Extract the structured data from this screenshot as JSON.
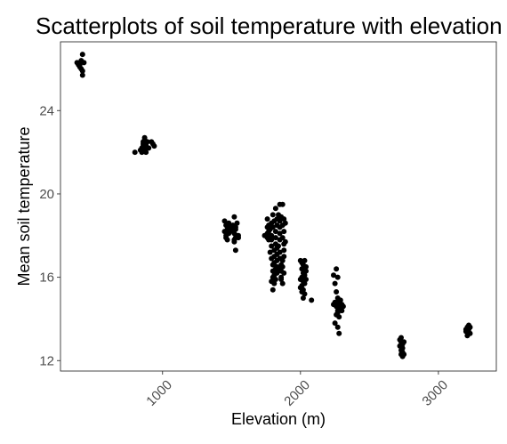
{
  "chart_data": {
    "type": "scatter",
    "title": "Scatterplots of soil temperature with elevation",
    "xlabel": "Elevation (m)",
    "ylabel": "Mean soil temperature",
    "xlim": [
      260,
      3420
    ],
    "ylim": [
      11.5,
      27.3
    ],
    "x_ticks": [
      1000,
      2000,
      3000
    ],
    "x_tick_labels": [
      "1000",
      "2000",
      "3000"
    ],
    "y_ticks": [
      12,
      16,
      20,
      24
    ],
    "y_tick_labels": [
      "12",
      "16",
      "20",
      "24"
    ],
    "grid": false,
    "point_color": "#000000",
    "points": [
      [
        380,
        26.3
      ],
      [
        390,
        26.2
      ],
      [
        400,
        26.2
      ],
      [
        410,
        26.4
      ],
      [
        420,
        26.7
      ],
      [
        410,
        26.0
      ],
      [
        420,
        25.9
      ],
      [
        420,
        25.7
      ],
      [
        400,
        26.1
      ],
      [
        430,
        26.3
      ],
      [
        800,
        22.0
      ],
      [
        840,
        22.1
      ],
      [
        850,
        22.2
      ],
      [
        860,
        22.4
      ],
      [
        860,
        22.5
      ],
      [
        870,
        22.6
      ],
      [
        880,
        22.3
      ],
      [
        870,
        22.1
      ],
      [
        880,
        22.2
      ],
      [
        850,
        22.0
      ],
      [
        870,
        22.7
      ],
      [
        890,
        22.5
      ],
      [
        860,
        22.3
      ],
      [
        880,
        22.0
      ],
      [
        920,
        22.5
      ],
      [
        930,
        22.4
      ],
      [
        940,
        22.3
      ],
      [
        900,
        22.2
      ],
      [
        880,
        22.4
      ],
      [
        870,
        22.2
      ],
      [
        1450,
        18.7
      ],
      [
        1460,
        18.5
      ],
      [
        1470,
        18.3
      ],
      [
        1450,
        18.2
      ],
      [
        1480,
        18.1
      ],
      [
        1460,
        17.9
      ],
      [
        1470,
        17.8
      ],
      [
        1490,
        18.4
      ],
      [
        1460,
        18.0
      ],
      [
        1480,
        18.6
      ],
      [
        1520,
        18.9
      ],
      [
        1510,
        18.5
      ],
      [
        1530,
        18.3
      ],
      [
        1520,
        18.1
      ],
      [
        1540,
        18.0
      ],
      [
        1530,
        17.9
      ],
      [
        1520,
        17.7
      ],
      [
        1550,
        17.9
      ],
      [
        1530,
        17.3
      ],
      [
        1510,
        18.2
      ],
      [
        1540,
        18.6
      ],
      [
        1520,
        17.8
      ],
      [
        1550,
        18.0
      ],
      [
        1500,
        18.3
      ],
      [
        1530,
        18.4
      ],
      [
        1740,
        18.0
      ],
      [
        1760,
        18.1
      ],
      [
        1760,
        18.8
      ],
      [
        1770,
        18.5
      ],
      [
        1770,
        18.2
      ],
      [
        1760,
        17.9
      ],
      [
        1790,
        18.0
      ],
      [
        1780,
        18.3
      ],
      [
        1790,
        17.8
      ],
      [
        1790,
        17.5
      ],
      [
        1780,
        17.2
      ],
      [
        1790,
        16.9
      ],
      [
        1800,
        16.6
      ],
      [
        1800,
        16.3
      ],
      [
        1800,
        16.0
      ],
      [
        1810,
        15.7
      ],
      [
        1800,
        15.4
      ],
      [
        1790,
        15.8
      ],
      [
        1810,
        17.3
      ],
      [
        1810,
        17.0
      ],
      [
        1810,
        16.7
      ],
      [
        1820,
        16.4
      ],
      [
        1810,
        16.1
      ],
      [
        1820,
        15.9
      ],
      [
        1830,
        16.2
      ],
      [
        1830,
        16.5
      ],
      [
        1830,
        16.8
      ],
      [
        1830,
        17.1
      ],
      [
        1830,
        17.4
      ],
      [
        1820,
        17.6
      ],
      [
        1820,
        17.9
      ],
      [
        1820,
        18.2
      ],
      [
        1830,
        18.5
      ],
      [
        1830,
        18.8
      ],
      [
        1840,
        19.0
      ],
      [
        1850,
        18.7
      ],
      [
        1850,
        18.4
      ],
      [
        1850,
        18.1
      ],
      [
        1850,
        17.8
      ],
      [
        1840,
        17.5
      ],
      [
        1850,
        17.2
      ],
      [
        1850,
        16.9
      ],
      [
        1860,
        16.6
      ],
      [
        1860,
        16.3
      ],
      [
        1860,
        16.0
      ],
      [
        1870,
        15.7
      ],
      [
        1880,
        16.2
      ],
      [
        1870,
        16.5
      ],
      [
        1870,
        16.8
      ],
      [
        1880,
        17.0
      ],
      [
        1880,
        17.3
      ],
      [
        1880,
        17.6
      ],
      [
        1870,
        17.9
      ],
      [
        1880,
        18.2
      ],
      [
        1870,
        18.5
      ],
      [
        1880,
        18.8
      ],
      [
        1870,
        19.5
      ],
      [
        1850,
        19.5
      ],
      [
        1820,
        19.3
      ],
      [
        1800,
        18.4
      ],
      [
        1800,
        19.0
      ],
      [
        1790,
        18.6
      ],
      [
        1770,
        17.8
      ],
      [
        1760,
        18.4
      ],
      [
        1810,
        18.7
      ],
      [
        1860,
        18.9
      ],
      [
        1890,
        18.6
      ],
      [
        1890,
        17.7
      ],
      [
        1840,
        16.4
      ],
      [
        1860,
        15.9
      ],
      [
        2000,
        16.8
      ],
      [
        2010,
        16.7
      ],
      [
        2020,
        16.6
      ],
      [
        2010,
        16.4
      ],
      [
        2020,
        16.2
      ],
      [
        2010,
        16.0
      ],
      [
        2020,
        15.8
      ],
      [
        2010,
        15.6
      ],
      [
        2020,
        15.4
      ],
      [
        2030,
        15.2
      ],
      [
        2020,
        15.0
      ],
      [
        2000,
        15.9
      ],
      [
        2030,
        16.1
      ],
      [
        2040,
        16.3
      ],
      [
        2030,
        15.7
      ],
      [
        2000,
        15.5
      ],
      [
        2040,
        15.9
      ],
      [
        2030,
        16.8
      ],
      [
        2010,
        15.3
      ],
      [
        2040,
        16.5
      ],
      [
        2080,
        14.9
      ],
      [
        2240,
        16.1
      ],
      [
        2260,
        16.4
      ],
      [
        2270,
        16.0
      ],
      [
        2250,
        15.7
      ],
      [
        2260,
        15.3
      ],
      [
        2270,
        15.0
      ],
      [
        2250,
        14.8
      ],
      [
        2260,
        14.6
      ],
      [
        2270,
        14.4
      ],
      [
        2280,
        14.7
      ],
      [
        2280,
        14.9
      ],
      [
        2290,
        14.6
      ],
      [
        2270,
        14.3
      ],
      [
        2280,
        14.1
      ],
      [
        2250,
        13.8
      ],
      [
        2270,
        13.6
      ],
      [
        2280,
        13.3
      ],
      [
        2290,
        14.5
      ],
      [
        2300,
        14.7
      ],
      [
        2300,
        14.4
      ],
      [
        2240,
        14.7
      ],
      [
        2260,
        14.2
      ],
      [
        2290,
        14.9
      ],
      [
        2310,
        14.6
      ],
      [
        2720,
        13.0
      ],
      [
        2730,
        13.1
      ],
      [
        2730,
        12.9
      ],
      [
        2740,
        12.8
      ],
      [
        2730,
        12.7
      ],
      [
        2740,
        12.6
      ],
      [
        2730,
        12.5
      ],
      [
        2740,
        12.4
      ],
      [
        2750,
        12.3
      ],
      [
        2740,
        12.2
      ],
      [
        2720,
        12.7
      ],
      [
        2750,
        12.9
      ],
      [
        2730,
        12.3
      ],
      [
        3200,
        13.4
      ],
      [
        3210,
        13.6
      ],
      [
        3220,
        13.7
      ],
      [
        3220,
        13.5
      ],
      [
        3230,
        13.3
      ],
      [
        3210,
        13.2
      ],
      [
        3230,
        13.6
      ],
      [
        3200,
        13.5
      ],
      [
        3220,
        13.3
      ]
    ]
  }
}
